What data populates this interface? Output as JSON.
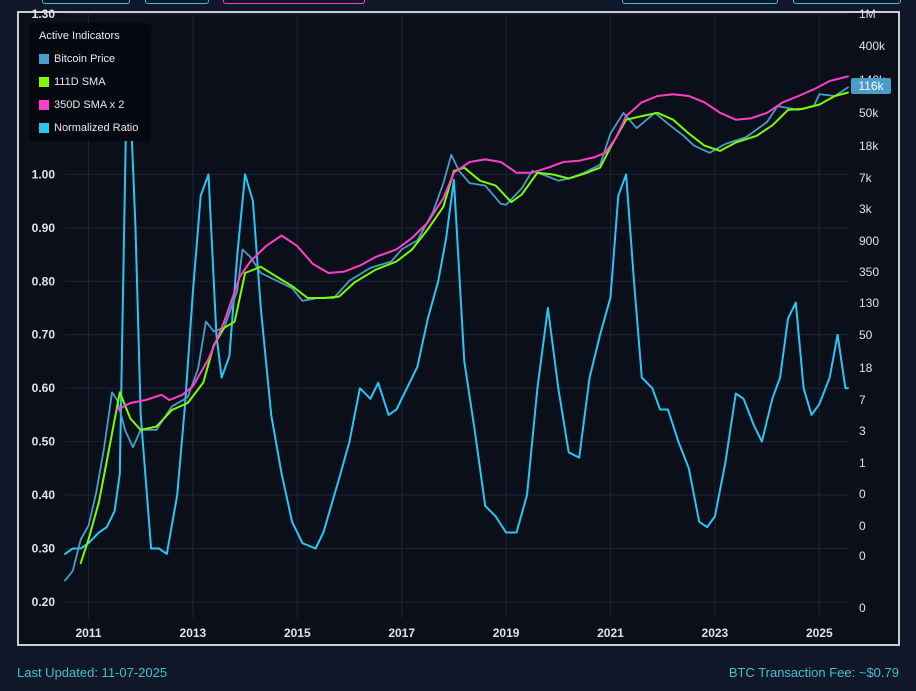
{
  "footer": {
    "last_updated": "Last Updated: 11-07-2025",
    "fee": "BTC Transaction Fee: ~$0.79"
  },
  "colors": {
    "background": "#0a0f1a",
    "price": "#4a9cc9",
    "sma111": "#7cfc00",
    "sma350x2": "#ff3fc8",
    "ratio": "#29c5f6",
    "axis_text": "#dfe3ea",
    "grid": "#1d2636"
  },
  "legend": {
    "title": "Active Indicators",
    "items": [
      {
        "label": "Bitcoin Price",
        "color": "#4a9cc9"
      },
      {
        "label": "111D SMA",
        "color": "#7cfc00"
      },
      {
        "label": "350D SMA x 2",
        "color": "#ff3fc8"
      },
      {
        "label": "Normalized Ratio",
        "color": "#29c5f6"
      }
    ]
  },
  "price_label": "116k",
  "chart_data": {
    "type": "line",
    "title": "",
    "xlabel": "",
    "ylabel": "",
    "x_ticks": [
      "2011",
      "2013",
      "2015",
      "2017",
      "2019",
      "2021",
      "2023",
      "2025"
    ],
    "x_tick_years": [
      2011,
      2013,
      2015,
      2017,
      2019,
      2021,
      2023,
      2025
    ],
    "xlim": [
      2010.55,
      2025.55
    ],
    "left_axis": {
      "ticks": [
        "1.30",
        "1.00",
        "0.90",
        "0.80",
        "0.70",
        "0.60",
        "0.50",
        "0.40",
        "0.30",
        "0.20"
      ],
      "values": [
        1.3,
        1.0,
        0.9,
        0.8,
        0.7,
        0.6,
        0.5,
        0.4,
        0.3,
        0.2
      ],
      "ylim": [
        0.17,
        1.3
      ]
    },
    "right_axis": {
      "scale": "log",
      "ticks": [
        "1M",
        "400k",
        "140k",
        "50k",
        "18k",
        "7k",
        "3k",
        "900",
        "350",
        "130",
        "50",
        "18",
        "7",
        "3",
        "1",
        "0",
        "0",
        "0",
        "0"
      ],
      "values": [
        1000000,
        400000,
        140000,
        50000,
        18000,
        7000,
        3000,
        900,
        350,
        130,
        50,
        18,
        7,
        3,
        1,
        0.4,
        0.15,
        0.06,
        0.007
      ]
    },
    "grid": true,
    "legend_position": "top-left",
    "series": [
      {
        "name": "Bitcoin Price",
        "axis": "right",
        "x": [
          2010.55,
          2010.7,
          2010.85,
          2011.0,
          2011.15,
          2011.3,
          2011.45,
          2011.55,
          2011.7,
          2011.85,
          2012.0,
          2012.3,
          2012.6,
          2012.9,
          2013.1,
          2013.25,
          2013.4,
          2013.6,
          2013.85,
          2013.95,
          2014.1,
          2014.3,
          2014.6,
          2014.9,
          2015.1,
          2015.4,
          2015.7,
          2016.0,
          2016.4,
          2016.8,
          2017.0,
          2017.3,
          2017.6,
          2017.8,
          2017.95,
          2018.1,
          2018.3,
          2018.6,
          2018.9,
          2019.0,
          2019.3,
          2019.5,
          2019.8,
          2020.0,
          2020.2,
          2020.5,
          2020.8,
          2021.0,
          2021.25,
          2021.5,
          2021.85,
          2022.1,
          2022.4,
          2022.6,
          2022.9,
          2023.2,
          2023.6,
          2024.0,
          2024.2,
          2024.6,
          2024.9,
          2025.0,
          2025.3,
          2025.55
        ],
        "values": [
          0.06,
          0.08,
          0.2,
          0.3,
          0.8,
          3,
          15,
          12,
          5,
          3,
          5,
          5,
          10,
          13,
          30,
          120,
          90,
          100,
          300,
          1000,
          800,
          500,
          400,
          320,
          220,
          240,
          240,
          400,
          580,
          700,
          1000,
          1300,
          3000,
          7000,
          16000,
          10000,
          7000,
          6500,
          3800,
          3700,
          6000,
          10000,
          8500,
          7500,
          8000,
          9500,
          12000,
          30000,
          55000,
          35000,
          55000,
          40000,
          28000,
          21000,
          17000,
          22000,
          27000,
          42000,
          67000,
          60000,
          68000,
          95000,
          90000,
          116000
        ]
      },
      {
        "name": "111D SMA",
        "axis": "right",
        "x": [
          2010.85,
          2011.0,
          2011.2,
          2011.35,
          2011.6,
          2011.8,
          2012.0,
          2012.3,
          2012.6,
          2012.9,
          2013.2,
          2013.4,
          2013.6,
          2013.8,
          2014.0,
          2014.3,
          2014.6,
          2014.9,
          2015.2,
          2015.5,
          2015.8,
          2016.1,
          2016.5,
          2016.9,
          2017.2,
          2017.5,
          2017.8,
          2018.0,
          2018.2,
          2018.5,
          2018.8,
          2019.1,
          2019.3,
          2019.6,
          2019.9,
          2020.2,
          2020.5,
          2020.8,
          2021.0,
          2021.3,
          2021.6,
          2021.9,
          2022.2,
          2022.5,
          2022.8,
          2023.1,
          2023.4,
          2023.8,
          2024.1,
          2024.4,
          2024.7,
          2025.0,
          2025.3,
          2025.55
        ],
        "values": [
          0.1,
          0.2,
          0.6,
          2,
          15,
          7,
          5,
          5.5,
          9,
          11,
          20,
          60,
          100,
          120,
          500,
          600,
          450,
          340,
          240,
          240,
          250,
          380,
          550,
          700,
          1000,
          1800,
          3500,
          10000,
          11000,
          7500,
          6500,
          4000,
          5000,
          9500,
          9000,
          8000,
          9200,
          11000,
          20000,
          45000,
          50000,
          55000,
          45000,
          30000,
          21000,
          18000,
          23000,
          28000,
          38000,
          60000,
          62000,
          70000,
          90000,
          100000
        ]
      },
      {
        "name": "350D SMA x 2",
        "axis": "right",
        "x": [
          2011.55,
          2011.8,
          2012.1,
          2012.4,
          2012.55,
          2012.8,
          2013.0,
          2013.3,
          2013.6,
          2013.9,
          2014.1,
          2014.4,
          2014.7,
          2015.0,
          2015.3,
          2015.6,
          2015.9,
          2016.2,
          2016.5,
          2016.9,
          2017.2,
          2017.5,
          2017.8,
          2018.0,
          2018.3,
          2018.6,
          2018.9,
          2019.2,
          2019.5,
          2019.8,
          2020.1,
          2020.4,
          2020.7,
          2020.9,
          2021.1,
          2021.3,
          2021.6,
          2021.9,
          2022.2,
          2022.5,
          2022.8,
          2023.1,
          2023.4,
          2023.7,
          2024.0,
          2024.3,
          2024.6,
          2024.9,
          2025.2,
          2025.55
        ],
        "values": [
          9,
          11,
          12,
          14,
          12,
          14,
          18,
          40,
          120,
          450,
          700,
          1100,
          1500,
          1100,
          650,
          500,
          520,
          620,
          800,
          1000,
          1400,
          2200,
          4500,
          9500,
          13000,
          14000,
          13000,
          9500,
          9500,
          11000,
          13000,
          13500,
          15000,
          17000,
          26000,
          50000,
          75000,
          90000,
          95000,
          90000,
          75000,
          55000,
          45000,
          47000,
          55000,
          75000,
          90000,
          110000,
          140000,
          160000
        ]
      },
      {
        "name": "Normalized Ratio",
        "axis": "left",
        "x": [
          2010.55,
          2010.7,
          2010.85,
          2011.0,
          2011.2,
          2011.35,
          2011.5,
          2011.6,
          2011.75,
          2011.9,
          2012.0,
          2012.2,
          2012.35,
          2012.5,
          2012.7,
          2012.85,
          2013.0,
          2013.15,
          2013.3,
          2013.45,
          2013.55,
          2013.7,
          2013.85,
          2014.0,
          2014.15,
          2014.3,
          2014.5,
          2014.7,
          2014.9,
          2015.1,
          2015.35,
          2015.5,
          2015.8,
          2016.0,
          2016.2,
          2016.4,
          2016.55,
          2016.75,
          2016.9,
          2017.1,
          2017.3,
          2017.5,
          2017.7,
          2017.85,
          2018.0,
          2018.2,
          2018.4,
          2018.6,
          2018.8,
          2019.0,
          2019.2,
          2019.4,
          2019.6,
          2019.8,
          2020.0,
          2020.2,
          2020.4,
          2020.6,
          2020.8,
          2021.0,
          2021.15,
          2021.3,
          2021.45,
          2021.6,
          2021.8,
          2021.95,
          2022.1,
          2022.3,
          2022.5,
          2022.7,
          2022.85,
          2023.0,
          2023.2,
          2023.4,
          2023.55,
          2023.75,
          2023.9,
          2024.1,
          2024.25,
          2024.4,
          2024.55,
          2024.7,
          2024.85,
          2025.0,
          2025.2,
          2025.35,
          2025.5,
          2025.55
        ],
        "values": [
          0.29,
          0.3,
          0.3,
          0.31,
          0.33,
          0.34,
          0.37,
          0.44,
          1.26,
          0.9,
          0.55,
          0.3,
          0.3,
          0.29,
          0.4,
          0.57,
          0.78,
          0.96,
          1.0,
          0.7,
          0.62,
          0.66,
          0.85,
          1.0,
          0.95,
          0.75,
          0.55,
          0.44,
          0.35,
          0.31,
          0.3,
          0.33,
          0.43,
          0.5,
          0.6,
          0.58,
          0.61,
          0.55,
          0.56,
          0.6,
          0.64,
          0.73,
          0.8,
          0.88,
          0.99,
          0.65,
          0.52,
          0.38,
          0.36,
          0.33,
          0.33,
          0.4,
          0.6,
          0.75,
          0.6,
          0.48,
          0.47,
          0.62,
          0.7,
          0.77,
          0.96,
          1.0,
          0.8,
          0.62,
          0.6,
          0.56,
          0.56,
          0.5,
          0.45,
          0.35,
          0.34,
          0.36,
          0.46,
          0.59,
          0.58,
          0.53,
          0.5,
          0.58,
          0.62,
          0.73,
          0.76,
          0.6,
          0.55,
          0.57,
          0.62,
          0.7,
          0.6,
          0.6
        ]
      }
    ]
  }
}
